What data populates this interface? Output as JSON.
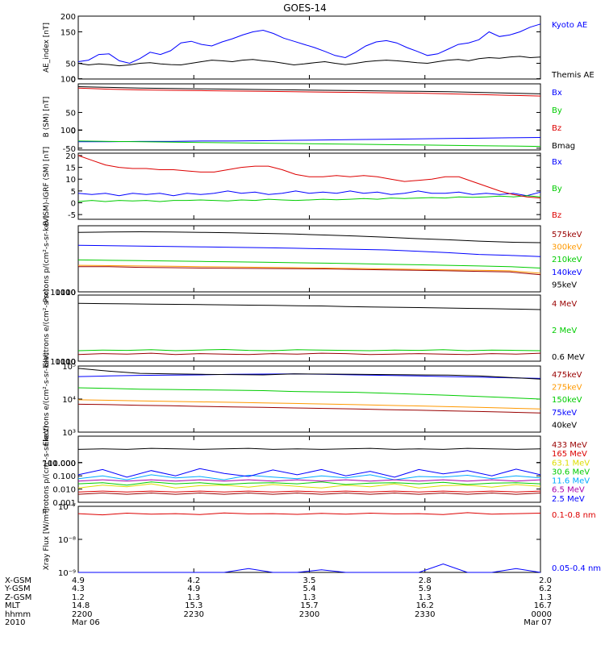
{
  "title": "GOES-14",
  "colors": {
    "black": "#000000",
    "blue": "#0000ff",
    "green": "#00cc00",
    "red": "#dd0000",
    "orange": "#ff9900",
    "yellow": "#dddd00",
    "cyan": "#00aaff",
    "purple": "#aa00aa",
    "darkred": "#990000"
  },
  "chart_data": [
    {
      "type": "line",
      "id": "ae",
      "ylabel": "AE_index [nT]",
      "ylim": [
        0,
        200
      ],
      "yticks": [
        "0",
        "50",
        "100",
        "150",
        "200"
      ],
      "series": [
        {
          "name": "Kyoto AE",
          "color": "blue",
          "values": [
            55,
            60,
            78,
            80,
            58,
            50,
            65,
            85,
            78,
            90,
            115,
            120,
            110,
            105,
            118,
            128,
            140,
            150,
            155,
            145,
            130,
            120,
            110,
            100,
            88,
            75,
            68,
            85,
            105,
            118,
            122,
            115,
            100,
            88,
            75,
            80,
            95,
            110,
            115,
            125,
            150,
            135,
            140,
            150,
            165,
            175
          ]
        },
        {
          "name": "Themis AE",
          "color": "black",
          "values": [
            50,
            45,
            48,
            46,
            42,
            45,
            50,
            52,
            48,
            46,
            45,
            50,
            55,
            60,
            58,
            55,
            60,
            62,
            58,
            55,
            50,
            45,
            48,
            52,
            55,
            50,
            46,
            50,
            55,
            58,
            60,
            58,
            55,
            52,
            50,
            55,
            60,
            62,
            58,
            65,
            68,
            66,
            70,
            72,
            68,
            70
          ]
        }
      ]
    },
    {
      "type": "line",
      "id": "bsm",
      "ylabel": "B (SM) [nT]",
      "ylim": [
        -55,
        130
      ],
      "yticks": [
        "-50",
        "0",
        "50",
        "100"
      ],
      "series": [
        {
          "name": "Bx",
          "color": "blue",
          "values": [
            -32,
            -32,
            -31,
            -31,
            -30,
            -30,
            -29,
            -28,
            -27,
            -26,
            -25,
            -24,
            -23,
            -22,
            -21,
            -20
          ]
        },
        {
          "name": "By",
          "color": "green",
          "values": [
            -30,
            -31,
            -32,
            -33,
            -34,
            -35,
            -36,
            -37,
            -38,
            -39,
            -40,
            -41,
            -42,
            -43,
            -44,
            -45
          ]
        },
        {
          "name": "Bz",
          "color": "red",
          "values": [
            118,
            115,
            113,
            112,
            111,
            110,
            109,
            108,
            107,
            106,
            105,
            104,
            102,
            100,
            98,
            96
          ]
        },
        {
          "name": "Bmag",
          "color": "black",
          "values": [
            122,
            120,
            118,
            117,
            116,
            115,
            114,
            113,
            112,
            111,
            110,
            109,
            108,
            106,
            104,
            102
          ]
        }
      ]
    },
    {
      "type": "line",
      "id": "bigrf",
      "ylabel": "B (SM)-IGRF (SM) [nT]",
      "ylim": [
        -7,
        21
      ],
      "yticks": [
        "-5",
        "0",
        "5",
        "10",
        "15",
        "20"
      ],
      "series": [
        {
          "name": "Bx",
          "color": "blue",
          "values": [
            4,
            3.5,
            4,
            3,
            4,
            3.5,
            4,
            3,
            4,
            3.5,
            4,
            5,
            4,
            4.5,
            3.5,
            4,
            5,
            4,
            4.5,
            4,
            5,
            4,
            4.5,
            3.5,
            4,
            5,
            4,
            4,
            4.5,
            3.5,
            4,
            3.5,
            4,
            3,
            4.5
          ]
        },
        {
          "name": "By",
          "color": "green",
          "values": [
            0.5,
            1,
            0.5,
            1,
            0.8,
            1,
            0.5,
            1,
            1,
            1.2,
            1,
            0.8,
            1.2,
            1,
            1.5,
            1.2,
            1,
            1.2,
            1.5,
            1.3,
            1.5,
            1.8,
            1.5,
            2,
            1.8,
            2,
            2.2,
            2,
            2.5,
            2.3,
            2.5,
            2.8,
            2.5,
            3,
            2.5
          ]
        },
        {
          "name": "Bz",
          "color": "red",
          "values": [
            20,
            18,
            16,
            15,
            14.5,
            14.5,
            14,
            14,
            13.5,
            13,
            13,
            14,
            15,
            15.5,
            15.5,
            14,
            12,
            11,
            11,
            11.5,
            11,
            11.5,
            11,
            10,
            9,
            9.5,
            10,
            11,
            11,
            9,
            7,
            5,
            3.5,
            2.5,
            2
          ]
        }
      ]
    },
    {
      "type": "line",
      "id": "protons1",
      "yscale": "log",
      "ylabel": "Protons p/(cm²-s-sr-keV)",
      "ylim": [
        10,
        10000
      ],
      "yticks": [
        "10",
        "100",
        "1000",
        "10000"
      ],
      "series": [
        {
          "name": "575keV",
          "color": "darkred",
          "values": [
            140,
            138,
            130,
            125,
            120,
            118,
            115,
            112,
            110,
            105,
            100,
            95,
            90,
            85,
            80,
            60
          ]
        },
        {
          "name": "300keV",
          "color": "orange",
          "values": [
            160,
            155,
            150,
            145,
            140,
            135,
            130,
            125,
            120,
            115,
            110,
            105,
            100,
            95,
            90,
            70
          ]
        },
        {
          "name": "210keV",
          "color": "green",
          "values": [
            280,
            270,
            260,
            250,
            240,
            230,
            220,
            210,
            200,
            190,
            180,
            170,
            160,
            150,
            140,
            120
          ]
        },
        {
          "name": "140keV",
          "color": "blue",
          "values": [
            1300,
            1250,
            1200,
            1150,
            1100,
            1050,
            1000,
            950,
            900,
            850,
            800,
            700,
            600,
            500,
            450,
            400
          ]
        },
        {
          "name": "95keV",
          "color": "black",
          "values": [
            5000,
            5200,
            5300,
            5200,
            5000,
            4800,
            4500,
            4200,
            3800,
            3400,
            3000,
            2600,
            2300,
            2000,
            1800,
            1700
          ]
        }
      ]
    },
    {
      "type": "line",
      "id": "electrons1",
      "yscale": "log",
      "ylabel": "Electrons e/(cm²-s-sr)",
      "ylim": [
        10,
        10000
      ],
      "yticks": [
        "10",
        "100",
        "1000",
        "10000"
      ],
      "series": [
        {
          "name": "4 MeV",
          "color": "darkred",
          "values": [
            20,
            22,
            21,
            23,
            20,
            22,
            21,
            20,
            22,
            21,
            23,
            22,
            20,
            21,
            22,
            21,
            20,
            22,
            21,
            23
          ]
        },
        {
          "name": "2 MeV",
          "color": "green",
          "values": [
            30,
            32,
            31,
            33,
            30,
            32,
            34,
            31,
            30,
            33,
            32,
            31,
            30,
            32,
            31,
            33,
            30,
            32,
            31,
            30
          ]
        },
        {
          "name": "0.6 MeV",
          "color": "black",
          "values": [
            4200,
            4100,
            4000,
            3900,
            3800,
            3700,
            3600,
            3500,
            3400,
            3300,
            3200,
            3000,
            2900,
            2800,
            2700,
            2600,
            2500,
            2400,
            2300,
            2200
          ]
        }
      ]
    },
    {
      "type": "line",
      "id": "electrons2",
      "yscale": "log",
      "ylabel": "Electrons e/(cm²-s-sr-keV)",
      "ylim": [
        1000,
        100000
      ],
      "yticks": [
        "10³",
        "10⁴",
        "10⁵"
      ],
      "series": [
        {
          "name": "475keV",
          "color": "darkred",
          "values": [
            7000,
            6800,
            6500,
            6300,
            6000,
            5800,
            5600,
            5400,
            5200,
            5000,
            4800,
            4600,
            4400,
            4200,
            4000,
            3800
          ]
        },
        {
          "name": "275keV",
          "color": "orange",
          "values": [
            9500,
            9200,
            8800,
            8500,
            8200,
            8000,
            7700,
            7400,
            7100,
            6800,
            6500,
            6200,
            5900,
            5600,
            5300,
            5000
          ]
        },
        {
          "name": "150keV",
          "color": "green",
          "values": [
            22000,
            21000,
            20000,
            19500,
            19000,
            18500,
            18000,
            17000,
            16500,
            16000,
            15000,
            14000,
            13000,
            12000,
            11000,
            10000
          ]
        },
        {
          "name": "75keV",
          "color": "blue",
          "values": [
            48000,
            50000,
            52000,
            53000,
            54000,
            56000,
            57000,
            58000,
            56000,
            54000,
            52000,
            50000,
            48000,
            46000,
            44000,
            42000
          ]
        },
        {
          "name": "40keV",
          "color": "black",
          "values": [
            85000,
            70000,
            60000,
            58000,
            56000,
            55000,
            54000,
            58000,
            57000,
            56000,
            55000,
            54000,
            53000,
            50000,
            45000,
            40000
          ]
        }
      ]
    },
    {
      "type": "line",
      "id": "protons2",
      "yscale": "log",
      "ylabel": "Protons p/(cm²-s-sr-keV)",
      "ylim": [
        0.001,
        100
      ],
      "yticks": [
        "0.001",
        "0.010",
        "0.100",
        "1.000",
        "10.000",
        "100.000"
      ],
      "series": [
        {
          "name": "433 MeV",
          "color": "darkred",
          "values": [
            0.004,
            0.005,
            0.004,
            0.005,
            0.004,
            0.005,
            0.004,
            0.005,
            0.004,
            0.005,
            0.004,
            0.005,
            0.004,
            0.005,
            0.004,
            0.005,
            0.004,
            0.005,
            0.004,
            0.005
          ]
        },
        {
          "name": "165 MeV",
          "color": "red",
          "values": [
            0.006,
            0.007,
            0.006,
            0.007,
            0.006,
            0.007,
            0.006,
            0.007,
            0.006,
            0.007,
            0.006,
            0.007,
            0.006,
            0.007,
            0.006,
            0.007,
            0.006,
            0.007,
            0.006,
            0.007
          ]
        },
        {
          "name": "63.1 MeV",
          "color": "yellow",
          "values": [
            0.012,
            0.02,
            0.015,
            0.025,
            0.012,
            0.018,
            0.02,
            0.014,
            0.022,
            0.016,
            0.012,
            0.02,
            0.015,
            0.025,
            0.012,
            0.018,
            0.02,
            0.014,
            0.022,
            0.016
          ]
        },
        {
          "name": "30.6 MeV",
          "color": "green",
          "values": [
            0.025,
            0.03,
            0.02,
            0.035,
            0.025,
            0.03,
            0.022,
            0.028,
            0.03,
            0.025,
            0.035,
            0.022,
            0.028,
            0.03,
            0.025,
            0.032,
            0.022,
            0.028,
            0.03,
            0.025
          ]
        },
        {
          "name": "11.6 MeV",
          "color": "cyan",
          "values": [
            0.06,
            0.1,
            0.05,
            0.12,
            0.07,
            0.09,
            0.05,
            0.11,
            0.08,
            0.06,
            0.1,
            0.07,
            0.12,
            0.05,
            0.09,
            0.08,
            0.11,
            0.06,
            0.1,
            0.07
          ]
        },
        {
          "name": "6.5 MeV",
          "color": "purple",
          "values": [
            0.04,
            0.05,
            0.04,
            0.05,
            0.04,
            0.05,
            0.04,
            0.05,
            0.04,
            0.05,
            0.04,
            0.05,
            0.04,
            0.05,
            0.04,
            0.05,
            0.04,
            0.05,
            0.04,
            0.05
          ]
        },
        {
          "name": "2.5 MeV",
          "color": "blue",
          "values": [
            0.12,
            0.3,
            0.08,
            0.25,
            0.1,
            0.35,
            0.15,
            0.09,
            0.28,
            0.12,
            0.3,
            0.1,
            0.22,
            0.08,
            0.3,
            0.14,
            0.25,
            0.1,
            0.32,
            0.12
          ]
        },
        {
          "name": "",
          "color": "black",
          "values": [
            10,
            11,
            10,
            12,
            11,
            10,
            11,
            12,
            10,
            11,
            10,
            11,
            12,
            10,
            11,
            10,
            12,
            11,
            10,
            11
          ]
        }
      ]
    },
    {
      "type": "line",
      "id": "xray",
      "yscale": "log",
      "ylabel": "Xray Flux [W/m²]",
      "ylim": [
        1e-09,
        1e-07
      ],
      "yticks": [
        "10⁻⁹",
        "10⁻⁸",
        "10⁻⁷"
      ],
      "series": [
        {
          "name": "0.1-0.8 nm",
          "color": "red",
          "values": [
            6e-08,
            5.5e-08,
            6.2e-08,
            5.8e-08,
            6e-08,
            5.6e-08,
            6.3e-08,
            5.9e-08,
            6e-08,
            5.7e-08,
            6.1e-08,
            5.8e-08,
            6.2e-08,
            5.9e-08,
            6e-08,
            5.6e-08,
            6.4e-08,
            5.8e-08,
            6e-08,
            6.2e-08
          ]
        },
        {
          "name": "0.05-0.4 nm",
          "color": "blue",
          "values": [
            9e-10,
            8e-10,
            9e-10,
            8e-10,
            9e-10,
            8e-10,
            9e-10,
            1.3e-09,
            9e-10,
            8e-10,
            1.2e-09,
            9e-10,
            8e-10,
            9e-10,
            8e-10,
            1.8e-09,
            9e-10,
            8e-10,
            1.3e-09,
            9e-10
          ]
        }
      ]
    }
  ],
  "orbit": {
    "row_labels": [
      "X-GSM",
      "Y-GSM",
      "Z-GSM",
      "MLT",
      "hhmm",
      "2010"
    ],
    "columns": [
      [
        "4.9",
        "4.3",
        "1.2",
        "14.8",
        "2200",
        "Mar 06"
      ],
      [
        "4.2",
        "4.9",
        "1.3",
        "15.3",
        "2230",
        ""
      ],
      [
        "3.5",
        "5.4",
        "1.3",
        "15.7",
        "2300",
        ""
      ],
      [
        "2.8",
        "5.9",
        "1.3",
        "16.2",
        "2330",
        ""
      ],
      [
        "2.0",
        "6.2",
        "1.3",
        "16.7",
        "0000",
        "Mar 07"
      ]
    ]
  }
}
